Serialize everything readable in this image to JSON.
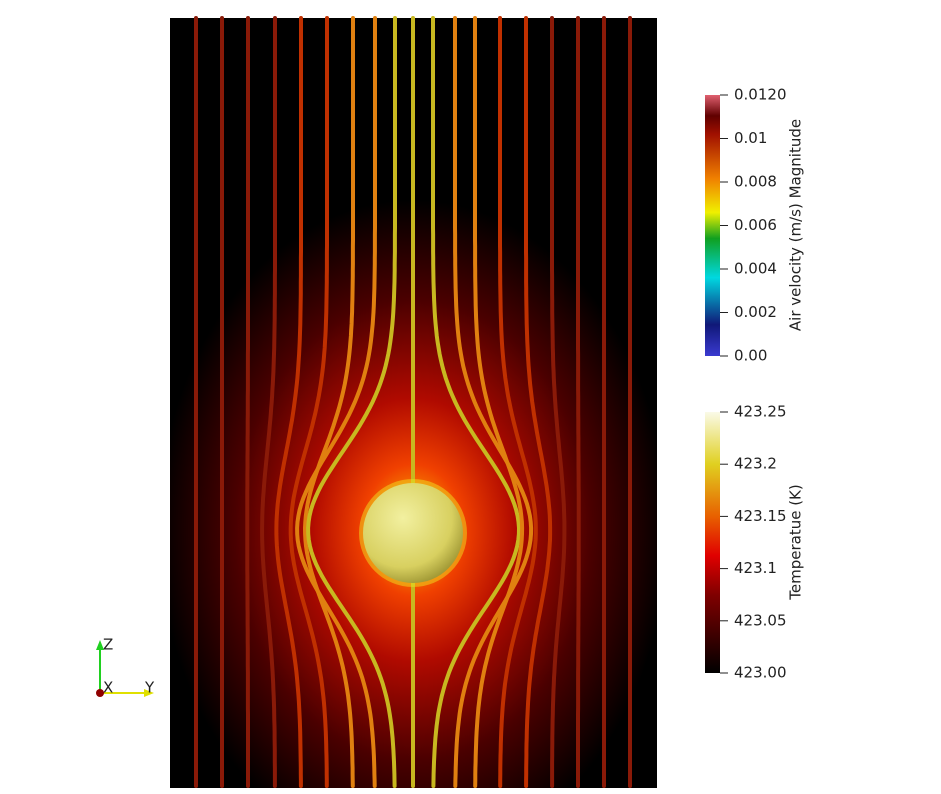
{
  "colorbars": [
    {
      "title": "Air velocity (m/s) Magnitude",
      "lim": [
        0,
        0.012
      ],
      "ticks": [
        {
          "value": 0.012,
          "label": "0.0120"
        },
        0.01,
        0.008,
        0.006,
        0.004,
        0.002,
        {
          "value": 0,
          "label": "0.00"
        }
      ]
    },
    {
      "title": "Temperatue (K)",
      "lim": [
        423,
        423.25
      ],
      "ticks": [
        423.25,
        423.2,
        423.15,
        423.1,
        423.05,
        {
          "value": 423,
          "label": "423.00"
        }
      ]
    }
  ],
  "axes_triad": {
    "z": "Z",
    "x": "X",
    "y": "Y"
  }
}
